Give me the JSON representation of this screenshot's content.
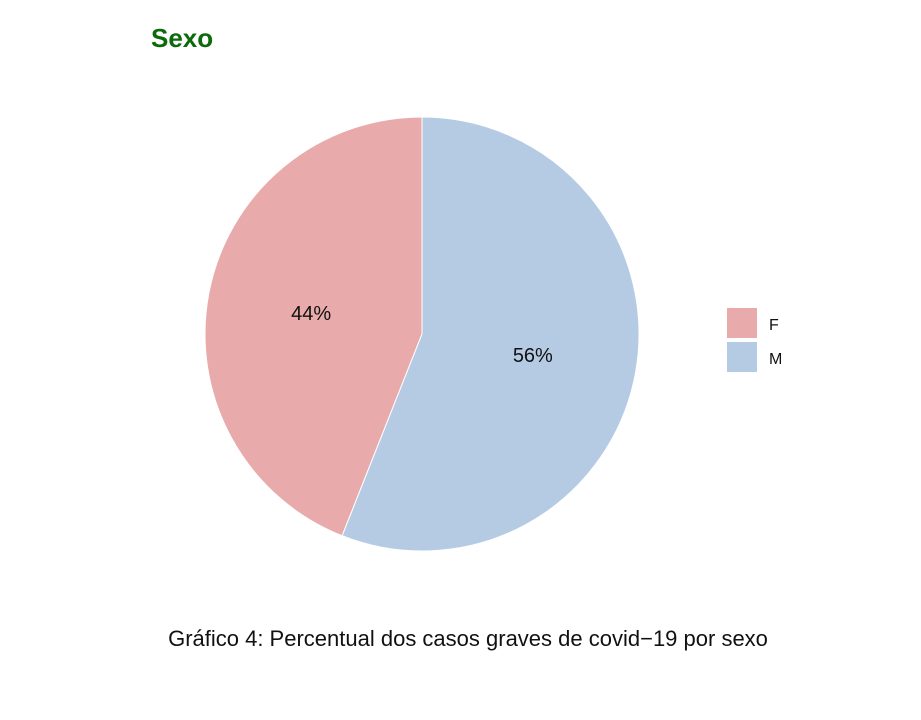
{
  "chart_data": {
    "type": "pie",
    "title": "Sexo",
    "categories": [
      "F",
      "M"
    ],
    "values": [
      44,
      56
    ],
    "labels": [
      "44%",
      "56%"
    ],
    "colors": [
      "#e8aaaa",
      "#b5cbe3"
    ],
    "title_color": "#0b6b0b",
    "legend": {
      "placement": "right",
      "items": [
        {
          "label": "F",
          "color": "#e8aaaa"
        },
        {
          "label": "M",
          "color": "#b5cbe3"
        }
      ]
    },
    "caption": "Gráfico 4: Percentual dos casos graves de covid−19 por sexo"
  }
}
